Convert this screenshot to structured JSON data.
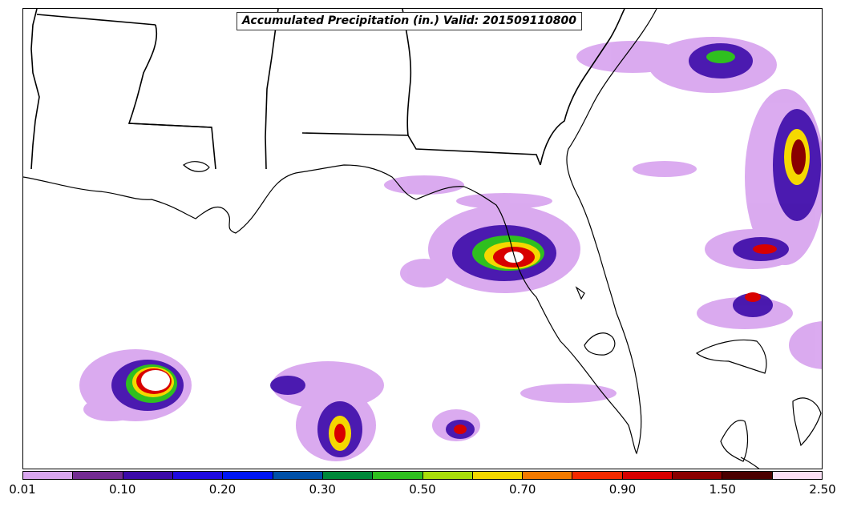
{
  "title": "Accumulated Precipitation (in.) Valid: 201509110800",
  "colorbar": {
    "colors": [
      "#d9a6ef",
      "#732b92",
      "#3b0aa8",
      "#1f0ae0",
      "#0016f5",
      "#0050a8",
      "#00883a",
      "#2fbf1f",
      "#a8dd0a",
      "#f5d800",
      "#f57a00",
      "#f52a00",
      "#d80000",
      "#8a0000",
      "#4a0000",
      "#fbe0f5"
    ],
    "tick_labels": [
      "0.01",
      "0.10",
      "0.20",
      "0.30",
      "0.50",
      "0.70",
      "0.90",
      "1.50",
      "2.50"
    ]
  }
}
